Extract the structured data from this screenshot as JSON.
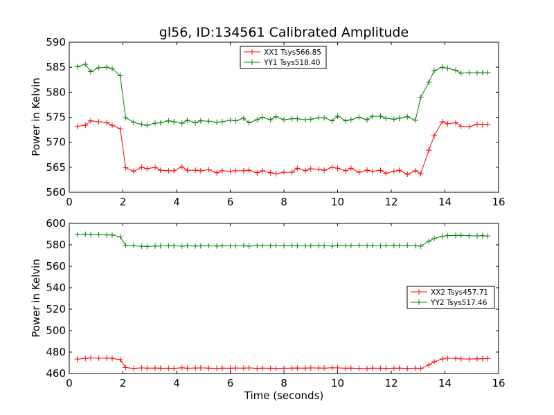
{
  "chart_data": [
    {
      "type": "line",
      "title": "gl56, ID:134561 Calibrated Amplitude",
      "xlabel": "",
      "ylabel": "Power in Kelvin",
      "xlim": [
        0,
        16
      ],
      "ylim": [
        560,
        590
      ],
      "xticks": [
        0,
        2,
        4,
        6,
        8,
        10,
        12,
        14,
        16
      ],
      "yticks": [
        560,
        565,
        570,
        575,
        580,
        585,
        590
      ],
      "grid": false,
      "legend_position": "top-center",
      "series": [
        {
          "name": "XX1 Tsys566.85",
          "color": "#ff0000",
          "x": [
            0.3,
            0.6,
            0.8,
            1.1,
            1.4,
            1.6,
            1.9,
            2.1,
            2.4,
            2.7,
            2.9,
            3.2,
            3.4,
            3.7,
            3.9,
            4.2,
            4.4,
            4.7,
            4.9,
            5.2,
            5.5,
            5.7,
            6.0,
            6.2,
            6.5,
            6.7,
            7.0,
            7.2,
            7.5,
            7.7,
            8.0,
            8.3,
            8.5,
            8.8,
            9.0,
            9.3,
            9.5,
            9.8,
            10.0,
            10.3,
            10.5,
            10.8,
            11.1,
            11.3,
            11.6,
            11.8,
            12.1,
            12.3,
            12.6,
            12.9,
            13.1,
            13.4,
            13.6,
            13.9,
            14.1,
            14.4,
            14.6,
            14.9,
            15.2,
            15.4,
            15.6
          ],
          "values": [
            573.2,
            573.4,
            574.3,
            574.1,
            573.9,
            573.4,
            572.7,
            564.9,
            564.2,
            565.0,
            564.7,
            565.0,
            564.4,
            564.3,
            564.3,
            565.1,
            564.4,
            564.4,
            564.3,
            564.5,
            563.9,
            564.3,
            564.2,
            564.3,
            564.3,
            564.4,
            563.9,
            564.3,
            563.9,
            563.7,
            564.0,
            564.0,
            564.8,
            564.3,
            564.7,
            564.6,
            564.4,
            565.0,
            564.8,
            564.3,
            564.8,
            564.0,
            564.4,
            564.2,
            564.4,
            563.8,
            564.2,
            564.4,
            563.6,
            564.3,
            563.7,
            568.4,
            571.3,
            574.1,
            573.7,
            573.9,
            573.2,
            573.1,
            573.6,
            573.5,
            573.6
          ]
        },
        {
          "name": "YY1 Tsys518.40",
          "color": "#008000",
          "x": [
            0.3,
            0.6,
            0.8,
            1.1,
            1.4,
            1.6,
            1.9,
            2.1,
            2.4,
            2.7,
            2.9,
            3.2,
            3.4,
            3.7,
            3.9,
            4.2,
            4.4,
            4.7,
            4.9,
            5.2,
            5.5,
            5.7,
            6.0,
            6.2,
            6.5,
            6.7,
            7.0,
            7.2,
            7.5,
            7.7,
            8.0,
            8.3,
            8.5,
            8.8,
            9.0,
            9.3,
            9.5,
            9.8,
            10.0,
            10.3,
            10.5,
            10.8,
            11.1,
            11.3,
            11.6,
            11.8,
            12.1,
            12.3,
            12.6,
            12.9,
            13.1,
            13.4,
            13.6,
            13.9,
            14.1,
            14.4,
            14.6,
            14.9,
            15.2,
            15.4,
            15.6
          ],
          "values": [
            585.1,
            585.6,
            584.1,
            584.9,
            585.0,
            584.7,
            583.3,
            574.9,
            574.0,
            573.6,
            573.4,
            573.8,
            573.9,
            574.3,
            574.1,
            573.8,
            574.4,
            573.9,
            574.3,
            574.2,
            574.0,
            574.1,
            574.4,
            574.3,
            574.8,
            573.9,
            574.5,
            575.0,
            574.5,
            575.1,
            574.5,
            574.7,
            574.7,
            574.5,
            574.6,
            574.9,
            574.9,
            574.3,
            575.2,
            574.3,
            574.5,
            575.0,
            574.5,
            575.2,
            575.2,
            574.8,
            574.6,
            574.8,
            575.1,
            574.4,
            579.0,
            582.0,
            584.3,
            585.0,
            584.8,
            584.4,
            583.8,
            583.9,
            583.9,
            583.9,
            583.9
          ]
        }
      ]
    },
    {
      "type": "line",
      "title": "",
      "xlabel": "Time (seconds)",
      "ylabel": "Power in Kelvin",
      "xlim": [
        0,
        16
      ],
      "ylim": [
        460,
        600
      ],
      "xticks": [
        0,
        2,
        4,
        6,
        8,
        10,
        12,
        14,
        16
      ],
      "yticks": [
        460,
        480,
        500,
        520,
        540,
        560,
        580,
        600
      ],
      "grid": false,
      "legend_position": "center-right",
      "series": [
        {
          "name": "XX2 Tsys457.71",
          "color": "#ff0000",
          "x": [
            0.3,
            0.6,
            0.8,
            1.1,
            1.4,
            1.6,
            1.9,
            2.1,
            2.4,
            2.7,
            2.9,
            3.2,
            3.4,
            3.7,
            3.9,
            4.2,
            4.4,
            4.7,
            4.9,
            5.2,
            5.5,
            5.7,
            6.0,
            6.2,
            6.5,
            6.7,
            7.0,
            7.2,
            7.5,
            7.7,
            8.0,
            8.3,
            8.5,
            8.8,
            9.0,
            9.3,
            9.5,
            9.8,
            10.0,
            10.3,
            10.5,
            10.8,
            11.1,
            11.3,
            11.6,
            11.8,
            12.1,
            12.3,
            12.6,
            12.9,
            13.1,
            13.4,
            13.6,
            13.9,
            14.1,
            14.4,
            14.6,
            14.9,
            15.2,
            15.4,
            15.6
          ],
          "values": [
            473.5,
            474.0,
            474.5,
            474.2,
            474.3,
            474.0,
            473.0,
            465.5,
            464.8,
            465.2,
            465.0,
            465.1,
            464.9,
            464.9,
            464.8,
            465.3,
            464.9,
            465.1,
            465.2,
            465.0,
            464.8,
            465.0,
            464.9,
            465.1,
            465.0,
            465.2,
            464.8,
            465.0,
            464.9,
            464.8,
            464.9,
            465.0,
            465.1,
            465.0,
            465.2,
            465.1,
            465.0,
            465.3,
            465.2,
            464.9,
            465.0,
            464.8,
            464.6,
            465.0,
            464.9,
            464.8,
            464.9,
            465.0,
            464.7,
            465.0,
            464.6,
            468.0,
            471.0,
            473.5,
            474.3,
            474.0,
            473.6,
            473.5,
            473.7,
            473.8,
            474.0
          ]
        },
        {
          "name": "YY2 Tsys517.46",
          "color": "#008000",
          "x": [
            0.3,
            0.6,
            0.8,
            1.1,
            1.4,
            1.6,
            1.9,
            2.1,
            2.4,
            2.7,
            2.9,
            3.2,
            3.4,
            3.7,
            3.9,
            4.2,
            4.4,
            4.7,
            4.9,
            5.2,
            5.5,
            5.7,
            6.0,
            6.2,
            6.5,
            6.7,
            7.0,
            7.2,
            7.5,
            7.7,
            8.0,
            8.3,
            8.5,
            8.8,
            9.0,
            9.3,
            9.5,
            9.8,
            10.0,
            10.3,
            10.5,
            10.8,
            11.1,
            11.3,
            11.6,
            11.8,
            12.1,
            12.3,
            12.6,
            12.9,
            13.1,
            13.4,
            13.6,
            13.9,
            14.1,
            14.4,
            14.6,
            14.9,
            15.2,
            15.4,
            15.6
          ],
          "values": [
            589.6,
            589.8,
            589.5,
            589.6,
            589.3,
            589.2,
            587.5,
            579.5,
            579.3,
            578.6,
            578.5,
            578.9,
            579.0,
            579.2,
            579.1,
            578.8,
            579.2,
            578.9,
            579.1,
            579.3,
            578.9,
            579.2,
            579.1,
            579.0,
            579.4,
            578.8,
            579.3,
            579.5,
            579.2,
            579.4,
            579.2,
            579.3,
            579.1,
            579.0,
            579.3,
            579.2,
            579.1,
            578.9,
            579.5,
            579.3,
            579.4,
            579.6,
            579.3,
            579.4,
            579.0,
            579.4,
            579.5,
            579.3,
            579.6,
            579.2,
            578.8,
            583.5,
            586.0,
            588.0,
            588.6,
            588.8,
            588.9,
            588.5,
            588.3,
            588.6,
            588.2
          ]
        }
      ]
    }
  ]
}
